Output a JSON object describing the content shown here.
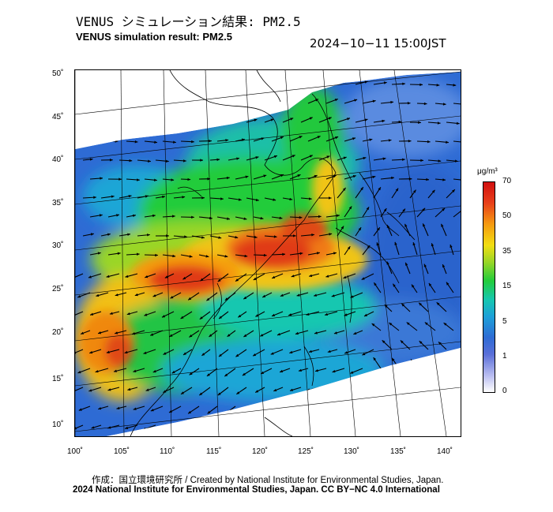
{
  "header": {
    "title_jp": "VENUS シミュレーション結果: PM2.5",
    "title_en": "VENUS simulation result: PM2.5",
    "timestamp": "2024−10−11 15:00JST"
  },
  "map": {
    "lat_ticks": [
      "50˚",
      "45˚",
      "40˚",
      "35˚",
      "30˚",
      "25˚",
      "20˚",
      "15˚",
      "10˚"
    ],
    "lon_ticks": [
      "100˚",
      "105˚",
      "110˚",
      "115˚",
      "120˚",
      "125˚",
      "130˚",
      "135˚",
      "140˚"
    ],
    "lat_range": [
      9,
      51
    ],
    "lon_range": [
      100,
      141
    ],
    "variable": "PM2.5 concentration with wind vectors"
  },
  "colorbar": {
    "unit": "μg/m³",
    "ticks": [
      "70",
      "50",
      "35",
      "15",
      "5",
      "1",
      "0"
    ],
    "colors": {
      "max": "#d11010",
      "high": "#f59a10",
      "mid": "#22cc3b",
      "low": "#1da0d8",
      "min": "#ffffff"
    }
  },
  "footer": {
    "credit": "作成：国立環境研究所 / Created by National Institute for Environmental Studies, Japan.",
    "copyright": "2024 National Institute for Environmental Studies, Japan. CC BY−NC 4.0 International"
  }
}
